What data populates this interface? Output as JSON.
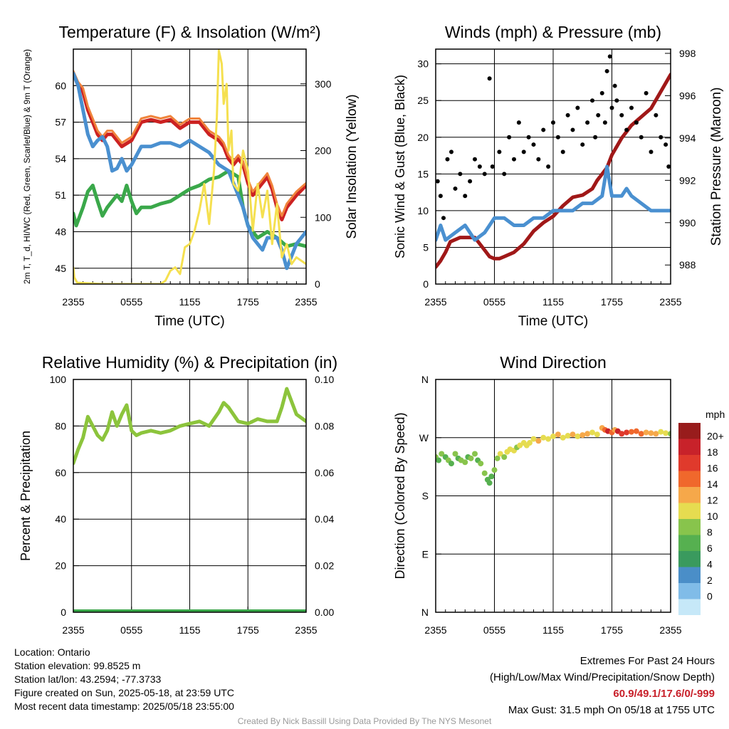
{
  "chart_data": [
    {
      "type": "line",
      "title": "Temperature (F) & Insolation (W/m²)",
      "xlabel": "Time (UTC)",
      "ylabel": "2m T, T_d, HI/WC (Red, Green, Scarlet/Blue) & 9m T (Orange)",
      "ylabel_right": "Solar Insolation (Yellow)",
      "x_ticks": [
        "2355",
        "0555",
        "1155",
        "1755",
        "2355"
      ],
      "y_ticks": [
        45,
        48,
        51,
        54,
        57,
        60
      ],
      "y2_ticks": [
        0,
        100,
        200,
        300
      ],
      "ylim": [
        43.7,
        63
      ],
      "y2lim": [
        0,
        352
      ],
      "grid": true,
      "series": [
        {
          "key": "temp_2m",
          "color": "#cc2222",
          "x": [
            0,
            0.5,
            1,
            1.5,
            2,
            2.5,
            3,
            3.5,
            4,
            5,
            6,
            7,
            8,
            9,
            10,
            11,
            12,
            13,
            13.5,
            14,
            15,
            15.5,
            16,
            16.5,
            17,
            17.5,
            18,
            18.5,
            19,
            19.5,
            20,
            20.5,
            21,
            21.5,
            22,
            23,
            24
          ],
          "values": [
            61,
            60,
            59.5,
            58,
            57,
            56,
            55.5,
            56,
            56,
            55,
            55.5,
            57,
            57.2,
            57,
            57.2,
            56.5,
            57,
            57,
            56.5,
            56,
            55.5,
            55,
            54,
            53.5,
            54,
            53.5,
            52,
            51,
            51.5,
            52,
            52.5,
            51.5,
            50,
            49,
            50,
            51,
            51.8
          ]
        },
        {
          "key": "temp_9m",
          "color": "#f0843c",
          "x": [
            0,
            0.5,
            1,
            1.5,
            2,
            2.5,
            3,
            3.5,
            4,
            5,
            6,
            7,
            8,
            9,
            10,
            11,
            12,
            13,
            13.5,
            14,
            15,
            15.5,
            16,
            16.5,
            17,
            17.5,
            18,
            18.5,
            19,
            19.5,
            20,
            20.5,
            21,
            21.5,
            22,
            23,
            24
          ],
          "values": [
            61.2,
            60.3,
            59.8,
            58.3,
            57.3,
            56.3,
            55.8,
            56.3,
            56.3,
            55.3,
            55.8,
            57.3,
            57.5,
            57.3,
            57.5,
            56.8,
            57.3,
            57.3,
            56.8,
            56.3,
            55.8,
            55.3,
            54.3,
            53.8,
            54.3,
            53.8,
            52.3,
            51.3,
            51.8,
            52.3,
            52.8,
            51.8,
            50.3,
            49.3,
            50.3,
            51.3,
            52
          ]
        },
        {
          "key": "dewpoint",
          "color": "#3aa84a",
          "x": [
            0,
            0.3,
            1,
            1.5,
            2,
            2.5,
            3,
            3.5,
            4,
            4.5,
            5,
            5.5,
            6,
            6.5,
            7,
            8,
            9,
            10,
            11,
            12,
            13,
            14,
            15,
            16,
            17,
            17.5,
            18,
            19,
            20,
            21,
            22,
            23,
            24
          ],
          "values": [
            49.5,
            48.5,
            50,
            51.3,
            51.8,
            50.5,
            49.3,
            50,
            50.5,
            51,
            50.5,
            51.8,
            50.5,
            49.5,
            50,
            50,
            50.3,
            50.5,
            51,
            51.5,
            51.8,
            52.3,
            52.5,
            53,
            52.5,
            50,
            48.5,
            47.5,
            48,
            47.5,
            46.8,
            47,
            46.8
          ]
        },
        {
          "key": "hi_wc",
          "color": "#4a90d0",
          "x": [
            0,
            0.5,
            1,
            1.5,
            2,
            2.5,
            3,
            3.5,
            4,
            4.5,
            5,
            5.5,
            6,
            7,
            8,
            9,
            10,
            11,
            12,
            13,
            14,
            15,
            16,
            16.5,
            17,
            17.5,
            18,
            18.5,
            19,
            19.5,
            20,
            21,
            21.5,
            22,
            22.5,
            23,
            24
          ],
          "values": [
            61,
            60,
            58,
            56,
            55,
            55.5,
            55.8,
            55,
            53,
            53.2,
            54,
            53,
            53.5,
            55,
            55,
            55.3,
            55.3,
            55,
            55.5,
            55,
            54.5,
            53.5,
            53,
            52,
            51,
            50,
            48.5,
            47.5,
            47,
            46.5,
            47.5,
            47.5,
            46.5,
            45,
            46,
            47,
            48
          ]
        },
        {
          "key": "solar",
          "axis": "right",
          "color": "#f5e050",
          "x": [
            0,
            0.1,
            0.4,
            3,
            6,
            9,
            9.5,
            10,
            10.5,
            11,
            11.5,
            12,
            12.5,
            13,
            13.5,
            14,
            14.5,
            14.8,
            15,
            15.3,
            15.5,
            15.8,
            16,
            16.3,
            16.5,
            17,
            17.5,
            18,
            18.5,
            19,
            19.5,
            20,
            20.5,
            21,
            21.5,
            22,
            22.5,
            23,
            24
          ],
          "values": [
            25,
            10,
            2,
            0,
            0,
            0,
            5,
            20,
            25,
            15,
            55,
            60,
            80,
            110,
            150,
            90,
            170,
            250,
            350,
            330,
            270,
            300,
            200,
            230,
            150,
            140,
            200,
            170,
            80,
            150,
            100,
            140,
            60,
            120,
            40,
            60,
            30,
            40,
            30
          ]
        }
      ]
    },
    {
      "type": "line",
      "title": "Winds (mph) & Pressure (mb)",
      "xlabel": "Time (UTC)",
      "ylabel": "Sonic Wind & Gust (Blue, Black)",
      "ylabel_right": "Station Pressure (Maroon)",
      "x_ticks": [
        "2355",
        "0555",
        "1155",
        "1755",
        "2355"
      ],
      "y_ticks": [
        0,
        5,
        10,
        15,
        20,
        25,
        30
      ],
      "y2_ticks": [
        988,
        990,
        992,
        994,
        996,
        998
      ],
      "ylim": [
        0,
        32
      ],
      "y2lim": [
        987.1,
        998.2
      ],
      "grid": true,
      "series": [
        {
          "key": "pressure",
          "axis": "right",
          "color": "#a01818",
          "x": [
            0,
            0.5,
            1,
            1.5,
            2,
            2.5,
            3,
            4,
            5,
            5.5,
            6,
            6.5,
            7,
            8,
            9,
            10,
            11,
            12,
            13,
            14,
            15,
            16,
            16.5,
            17,
            17.5,
            18,
            18.5,
            19,
            20,
            21,
            22,
            23,
            24
          ],
          "values": [
            987.9,
            988.2,
            988.6,
            989.1,
            989.2,
            989.3,
            989.3,
            989.3,
            988.7,
            988.4,
            988.3,
            988.3,
            988.4,
            988.6,
            989,
            989.6,
            990,
            990.3,
            990.8,
            991.2,
            991.3,
            991.6,
            992,
            992.3,
            992.6,
            993.2,
            993.6,
            994,
            994.6,
            995,
            995.4,
            996.2,
            997
          ]
        },
        {
          "key": "wind_speed",
          "color": "#4a90d0",
          "x": [
            0,
            0.5,
            1,
            2,
            3,
            4,
            5,
            6,
            7,
            8,
            9,
            10,
            11,
            12,
            13,
            14,
            15,
            16,
            17,
            17.5,
            18,
            19,
            19.5,
            20,
            21,
            22,
            23,
            24
          ],
          "values": [
            6,
            8,
            6,
            7,
            8,
            6,
            7,
            9,
            9,
            8,
            8,
            9,
            9,
            10,
            10,
            10,
            11,
            11,
            12,
            16,
            12,
            12,
            13,
            12,
            11,
            10,
            10,
            10
          ]
        },
        {
          "key": "wind_gust",
          "type": "scatter",
          "color": "#000000",
          "x": [
            0.2,
            0.5,
            0.8,
            1.2,
            1.6,
            2,
            2.5,
            3,
            3.5,
            4,
            4.5,
            5,
            5.5,
            5.8,
            6.5,
            7,
            7.5,
            8,
            8.5,
            9,
            9.5,
            10,
            10.5,
            11,
            11.5,
            12,
            12.5,
            13,
            13.5,
            14,
            14.5,
            15,
            15.5,
            16,
            16.3,
            16.6,
            17,
            17.3,
            17.5,
            17.8,
            18,
            18.3,
            18.5,
            19,
            19.5,
            20,
            20.5,
            21,
            21.5,
            22,
            22.5,
            23,
            23.5,
            23.8
          ],
          "values": [
            14,
            12,
            9,
            17,
            18,
            13,
            15,
            12,
            14,
            17,
            16,
            15,
            28,
            16,
            18,
            15,
            20,
            17,
            22,
            18,
            20,
            19,
            17,
            21,
            16,
            22,
            20,
            18,
            23,
            21,
            24,
            19,
            22,
            25,
            20,
            23,
            26,
            22,
            29,
            31,
            24,
            27,
            25,
            23,
            21,
            24,
            22,
            20,
            26,
            18,
            23,
            20,
            19,
            16
          ]
        }
      ]
    },
    {
      "type": "line",
      "title": "Relative Humidity (%) & Precipitation (in)",
      "ylabel": "Percent & Precipitation",
      "x_ticks": [
        "2355",
        "0555",
        "1155",
        "1755",
        "2355"
      ],
      "y_ticks": [
        0,
        20,
        40,
        60,
        80,
        100
      ],
      "y2_ticks": [
        "0.00",
        "0.02",
        "0.04",
        "0.06",
        "0.08",
        "0.10"
      ],
      "ylim": [
        0,
        100
      ],
      "y2lim": [
        0,
        0.1
      ],
      "grid": true,
      "series": [
        {
          "key": "rh",
          "color": "#8cc43c",
          "x": [
            0,
            0.5,
            1,
            1.5,
            2,
            2.5,
            3,
            3.5,
            4,
            4.5,
            5,
            5.5,
            6,
            6.5,
            7,
            8,
            9,
            10,
            11,
            12,
            13,
            14,
            15,
            15.5,
            16,
            17,
            18,
            19,
            20,
            21,
            21.5,
            22,
            23,
            24
          ],
          "values": [
            64,
            70,
            75,
            84,
            80,
            76,
            74,
            78,
            86,
            80,
            85,
            89,
            78,
            76,
            77,
            78,
            77,
            78,
            80,
            81,
            82,
            80,
            86,
            90,
            88,
            82,
            81,
            83,
            82,
            82,
            88,
            96,
            85,
            82
          ]
        },
        {
          "key": "precip",
          "axis": "right",
          "color": "#3aa84a",
          "x": [
            0,
            24
          ],
          "values": [
            0,
            0
          ]
        }
      ]
    },
    {
      "type": "scatter",
      "title": "Wind Direction",
      "ylabel": "Direction (Colored By Speed)",
      "x_ticks": [
        "2355",
        "0555",
        "1155",
        "1755",
        "2355"
      ],
      "y_ticks": [
        "N",
        "E",
        "S",
        "W",
        "N"
      ],
      "ylim": [
        0,
        360
      ],
      "grid": true,
      "legend": {
        "title": "mph",
        "labels": [
          "20+",
          "18",
          "16",
          "14",
          "12",
          "10",
          "8",
          "6",
          "4",
          "2",
          "0"
        ],
        "position": "right"
      },
      "color_scale": [
        "#c6e8f8",
        "#80bce8",
        "#4a8ec8",
        "#3a9a5e",
        "#56b050",
        "#88c44c",
        "#e6dc50",
        "#f6a84a",
        "#f0682c",
        "#e03a2c",
        "#c8222a",
        "#981c1c"
      ],
      "series": [
        {
          "key": "direction",
          "x": [
            0,
            0.3,
            0.6,
            1,
            1.3,
            1.6,
            2,
            2.3,
            2.6,
            3,
            3.3,
            3.6,
            4,
            4.3,
            4.6,
            5,
            5.3,
            5.5,
            5.7,
            6,
            6.3,
            6.6,
            7,
            7.3,
            7.6,
            8,
            8.3,
            8.6,
            9,
            9.3,
            9.6,
            10,
            10.5,
            11,
            11.5,
            12,
            12.5,
            13,
            13.5,
            14,
            14.5,
            15,
            15.5,
            16,
            16.5,
            17,
            17.3,
            17.6,
            18,
            18.3,
            18.6,
            19,
            19.5,
            20,
            20.5,
            21,
            21.5,
            22,
            22.5,
            23,
            23.5,
            24
          ],
          "values": [
            240,
            235,
            245,
            240,
            235,
            230,
            245,
            238,
            235,
            232,
            240,
            238,
            245,
            235,
            230,
            215,
            205,
            200,
            210,
            220,
            238,
            245,
            240,
            248,
            252,
            250,
            255,
            258,
            262,
            258,
            262,
            268,
            265,
            270,
            268,
            272,
            275,
            270,
            273,
            275,
            272,
            274,
            276,
            278,
            275,
            285,
            282,
            280,
            278,
            282,
            280,
            276,
            278,
            279,
            280,
            276,
            278,
            277,
            276,
            279,
            277,
            276
          ],
          "speeds": [
            7,
            6,
            8,
            6,
            7,
            5,
            8,
            6,
            7,
            8,
            5,
            7,
            8,
            6,
            7,
            7,
            6,
            5,
            6,
            7,
            8,
            9,
            8,
            9,
            10,
            9,
            8,
            10,
            9,
            10,
            9,
            10,
            11,
            10,
            9,
            10,
            11,
            10,
            9,
            11,
            10,
            11,
            12,
            9,
            10,
            11,
            13,
            17,
            14,
            12,
            18,
            16,
            15,
            14,
            13,
            14,
            12,
            11,
            12,
            10,
            9,
            8
          ]
        }
      ]
    }
  ],
  "info": {
    "location": "Location: Ontario",
    "elevation": "Station elevation: 99.8525 m",
    "latlon": "Station lat/lon: 43.2594; -77.3733",
    "created": "Figure created on Sun, 2025-05-18, at 23:59 UTC",
    "recent": "Most recent data timestamp: 2025/05/18 23:55:00"
  },
  "extremes": {
    "heading": "Extremes For Past 24 Hours",
    "subheading": "(High/Low/Max Wind/Precipitation/Snow Depth)",
    "values": "60.9/49.1/17.6/0/-999",
    "max_gust": "Max Gust: 31.5 mph On 05/18 at 1755 UTC"
  },
  "credit": "Created By Nick Bassill Using Data Provided By The NYS Mesonet"
}
